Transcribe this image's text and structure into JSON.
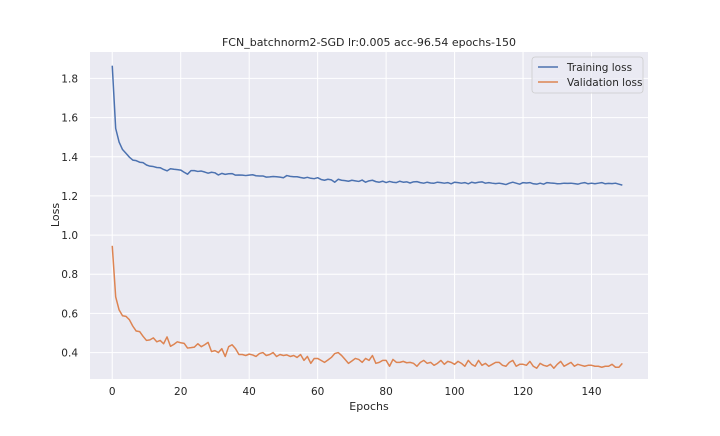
{
  "chart_data": {
    "type": "line",
    "title": "FCN_batchnorm2-SGD lr:0.005 acc-96.54 epochs-150",
    "xlabel": "Epochs",
    "ylabel": "Loss",
    "xlim": [
      -6.5,
      156.5
    ],
    "ylim": [
      0.265,
      1.935
    ],
    "xticks": [
      0,
      20,
      40,
      60,
      80,
      100,
      120,
      140
    ],
    "yticks": [
      0.4,
      0.6,
      0.8,
      1.0,
      1.2,
      1.4,
      1.6,
      1.8
    ],
    "ytick_labels": [
      "0.4",
      "0.6",
      "0.8",
      "1.0",
      "1.2",
      "1.4",
      "1.6",
      "1.8"
    ],
    "grid": true,
    "legend_position": "top-right",
    "series": [
      {
        "name": "Training loss",
        "color": "#4c72b0",
        "values": [
          1.865,
          1.545,
          1.475,
          1.437,
          1.418,
          1.398,
          1.383,
          1.38,
          1.372,
          1.37,
          1.358,
          1.352,
          1.35,
          1.345,
          1.344,
          1.335,
          1.328,
          1.339,
          1.336,
          1.334,
          1.332,
          1.321,
          1.311,
          1.329,
          1.329,
          1.325,
          1.327,
          1.322,
          1.316,
          1.321,
          1.318,
          1.307,
          1.315,
          1.31,
          1.313,
          1.314,
          1.306,
          1.307,
          1.306,
          1.304,
          1.306,
          1.308,
          1.303,
          1.302,
          1.302,
          1.296,
          1.297,
          1.299,
          1.298,
          1.296,
          1.293,
          1.304,
          1.3,
          1.298,
          1.298,
          1.294,
          1.291,
          1.295,
          1.29,
          1.288,
          1.293,
          1.284,
          1.28,
          1.285,
          1.282,
          1.27,
          1.285,
          1.28,
          1.278,
          1.275,
          1.28,
          1.277,
          1.274,
          1.281,
          1.27,
          1.277,
          1.28,
          1.273,
          1.27,
          1.275,
          1.268,
          1.274,
          1.27,
          1.268,
          1.275,
          1.27,
          1.272,
          1.266,
          1.272,
          1.273,
          1.268,
          1.265,
          1.27,
          1.266,
          1.265,
          1.27,
          1.268,
          1.265,
          1.268,
          1.262,
          1.27,
          1.268,
          1.265,
          1.268,
          1.262,
          1.27,
          1.266,
          1.27,
          1.272,
          1.265,
          1.268,
          1.265,
          1.263,
          1.265,
          1.262,
          1.258,
          1.265,
          1.27,
          1.265,
          1.26,
          1.268,
          1.266,
          1.268,
          1.262,
          1.26,
          1.265,
          1.26,
          1.268,
          1.266,
          1.265,
          1.262,
          1.263,
          1.265,
          1.264,
          1.265,
          1.263,
          1.26,
          1.265,
          1.268,
          1.262,
          1.265,
          1.262,
          1.265,
          1.268,
          1.262,
          1.264,
          1.263,
          1.265,
          1.26,
          1.255
        ]
      },
      {
        "name": "Validation loss",
        "color": "#dd8452",
        "values": [
          0.945,
          0.685,
          0.618,
          0.588,
          0.585,
          0.568,
          0.535,
          0.51,
          0.507,
          0.483,
          0.462,
          0.465,
          0.475,
          0.455,
          0.462,
          0.445,
          0.48,
          0.432,
          0.442,
          0.455,
          0.45,
          0.447,
          0.423,
          0.425,
          0.428,
          0.445,
          0.43,
          0.44,
          0.452,
          0.405,
          0.41,
          0.4,
          0.42,
          0.38,
          0.43,
          0.44,
          0.42,
          0.39,
          0.39,
          0.385,
          0.392,
          0.388,
          0.38,
          0.395,
          0.4,
          0.385,
          0.39,
          0.4,
          0.38,
          0.39,
          0.385,
          0.388,
          0.38,
          0.385,
          0.375,
          0.39,
          0.36,
          0.38,
          0.345,
          0.37,
          0.37,
          0.36,
          0.35,
          0.362,
          0.375,
          0.395,
          0.4,
          0.385,
          0.365,
          0.345,
          0.357,
          0.37,
          0.365,
          0.35,
          0.37,
          0.36,
          0.385,
          0.345,
          0.35,
          0.36,
          0.36,
          0.33,
          0.365,
          0.35,
          0.35,
          0.355,
          0.348,
          0.35,
          0.345,
          0.33,
          0.35,
          0.36,
          0.345,
          0.35,
          0.335,
          0.345,
          0.36,
          0.34,
          0.355,
          0.35,
          0.34,
          0.355,
          0.345,
          0.33,
          0.36,
          0.34,
          0.33,
          0.36,
          0.335,
          0.345,
          0.33,
          0.34,
          0.35,
          0.35,
          0.335,
          0.33,
          0.35,
          0.36,
          0.33,
          0.34,
          0.34,
          0.335,
          0.355,
          0.33,
          0.32,
          0.345,
          0.335,
          0.33,
          0.34,
          0.32,
          0.34,
          0.355,
          0.33,
          0.34,
          0.35,
          0.33,
          0.34,
          0.335,
          0.33,
          0.335,
          0.335,
          0.33,
          0.33,
          0.325,
          0.33,
          0.33,
          0.34,
          0.325,
          0.325,
          0.345
        ]
      }
    ]
  }
}
